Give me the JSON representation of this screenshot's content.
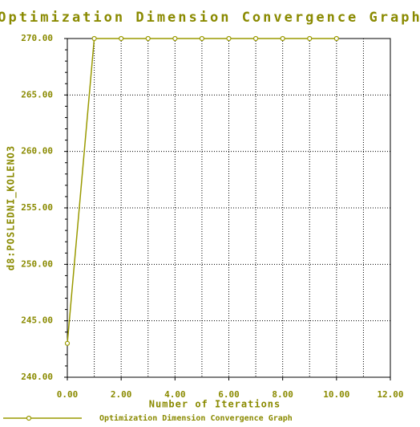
{
  "chart_data": {
    "type": "line",
    "title": "Optimization Dimension Convergence Graph",
    "xlabel": "Number of Iterations",
    "ylabel": "d8:POSLEDNI_KOLENO3",
    "x": [
      0,
      1,
      2,
      3,
      4,
      5,
      6,
      7,
      8,
      9,
      10
    ],
    "series": [
      {
        "name": "Optimization Dimension Convergence Graph",
        "color": "#9a9a00",
        "values": [
          243,
          270,
          270,
          270,
          270,
          270,
          270,
          270,
          270,
          270,
          270
        ]
      }
    ],
    "xlim": [
      0,
      12
    ],
    "xticks": [
      {
        "value": 0,
        "label": "0.00"
      },
      {
        "value": 2,
        "label": "2.00"
      },
      {
        "value": 4,
        "label": "4.00"
      },
      {
        "value": 6,
        "label": "6.00"
      },
      {
        "value": 8,
        "label": "8.00"
      },
      {
        "value": 10,
        "label": "10.00"
      },
      {
        "value": 12,
        "label": "12.00"
      }
    ],
    "ylim": [
      240,
      270
    ],
    "yticks": [
      {
        "value": 240,
        "label": "240.00"
      },
      {
        "value": 245,
        "label": "245.00"
      },
      {
        "value": 250,
        "label": "250.00"
      },
      {
        "value": 255,
        "label": "255.00"
      },
      {
        "value": 260,
        "label": "260.00"
      },
      {
        "value": 265,
        "label": "265.00"
      },
      {
        "value": 270,
        "label": "270.00"
      }
    ],
    "grid": true
  }
}
